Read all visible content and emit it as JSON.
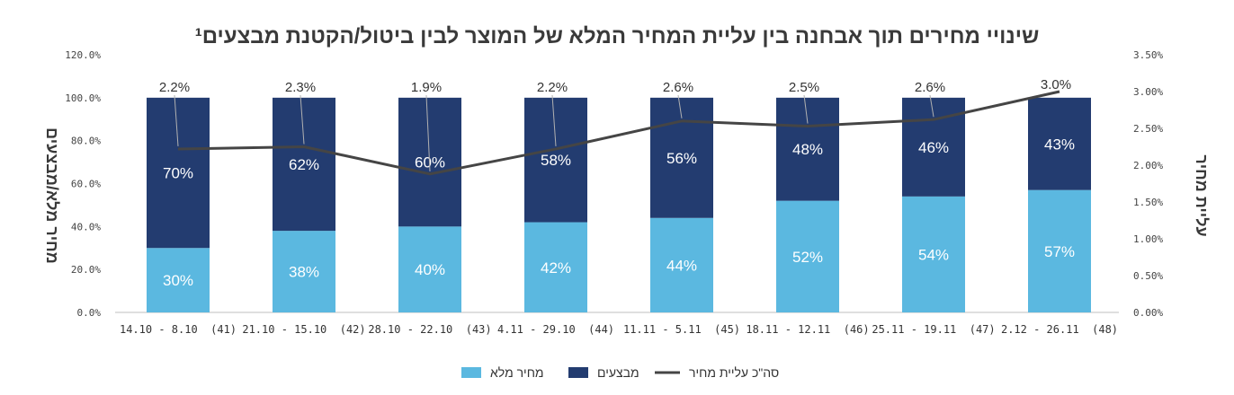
{
  "chart_data": {
    "type": "bar",
    "stacked": true,
    "title": "שינויי מחירים תוך אבחנה בין עליית המחיר המלא של המוצר לבין ביטול/הקטנת מבצעים¹",
    "categories": [
      "14.10 - 8.10  (41)",
      "21.10 - 15.10  (42)",
      "28.10 - 22.10  (43)",
      "4.11 - 29.10  (44)",
      "11.11 - 5.11  (45)",
      "18.11 - 12.11  (46)",
      "25.11 - 19.11  (47)",
      "2.12 - 26.11  (48)"
    ],
    "series": [
      {
        "name": "מחיר מלא",
        "axis": "left",
        "color": "#5bb8e0",
        "values": [
          30,
          38,
          40,
          42,
          44,
          52,
          54,
          57
        ],
        "labels": [
          "30%",
          "38%",
          "40%",
          "42%",
          "44%",
          "52%",
          "54%",
          "57%"
        ]
      },
      {
        "name": "מבצעים",
        "axis": "left",
        "color": "#233c70",
        "values": [
          70,
          62,
          60,
          58,
          56,
          48,
          46,
          43
        ],
        "labels": [
          "70%",
          "62%",
          "60%",
          "58%",
          "56%",
          "48%",
          "46%",
          "43%"
        ]
      },
      {
        "name": "סה\"כ עליית מחיר",
        "axis": "right",
        "type": "line",
        "color": "#454545",
        "values": [
          2.22,
          2.25,
          1.88,
          2.22,
          2.6,
          2.53,
          2.62,
          3.0
        ],
        "labels": [
          "2.2%",
          "2.3%",
          "1.9%",
          "2.2%",
          "2.6%",
          "2.5%",
          "2.6%",
          "3.0%"
        ]
      }
    ],
    "ylabel": "מחיר מלא/מבצעים",
    "y2label": "עליית מחיר",
    "ylim": [
      0,
      120
    ],
    "y2lim": [
      0,
      3.5
    ],
    "yticks": [
      "0.0%",
      "20.0%",
      "40.0%",
      "60.0%",
      "80.0%",
      "100.0%",
      "120.0%"
    ],
    "y2ticks": [
      "0.00%",
      "0.50%",
      "1.00%",
      "1.50%",
      "2.00%",
      "2.50%",
      "3.00%",
      "3.50%"
    ],
    "grid": false,
    "legend": "bottom"
  }
}
